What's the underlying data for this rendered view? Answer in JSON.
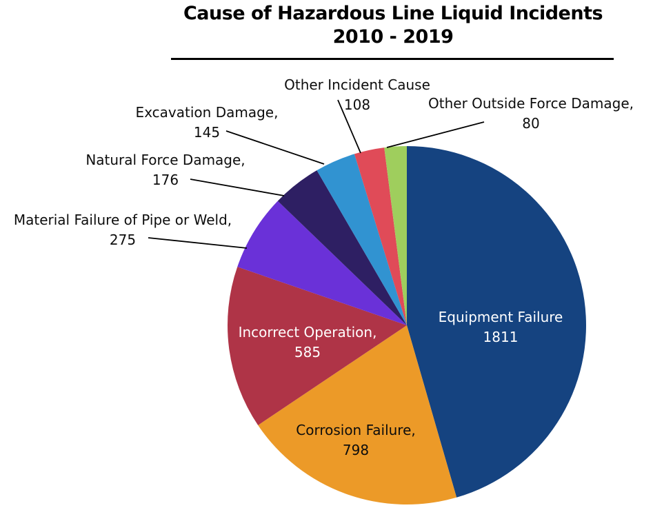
{
  "title": {
    "line1": "Cause of Hazardous Line Liquid Incidents",
    "line2": "2010 - 2019"
  },
  "chart_data": {
    "type": "pie",
    "title": "Cause of Hazardous Line Liquid Incidents",
    "subtitle": "2010 - 2019",
    "direction": "clockwise",
    "start_angle": "12 o'clock",
    "legend_position": "none",
    "segments": [
      {
        "name": "Equipment Failure",
        "value": 1811,
        "name_label": "Equipment Failure",
        "value_label": "1811",
        "color": "#154380",
        "label_position": "inside",
        "label_color": "#ffffff"
      },
      {
        "name": "Corrosion Failure",
        "value": 798,
        "name_label": "Corrosion Failure,",
        "value_label": "798",
        "color": "#EC9A28",
        "label_position": "inside",
        "label_color": "#0d0d0d"
      },
      {
        "name": "Incorrect Operation",
        "value": 585,
        "name_label": "Incorrect Operation,",
        "value_label": "585",
        "color": "#AF3447",
        "label_position": "inside",
        "label_color": "#ffffff"
      },
      {
        "name": "Material Failure of Pipe or Weld",
        "value": 275,
        "name_label": "Material Failure of Pipe or Weld,",
        "value_label": "275",
        "color": "#6A31D8",
        "label_position": "outside",
        "label_color": "#0d0d0d"
      },
      {
        "name": "Natural Force Damage",
        "value": 176,
        "name_label": "Natural Force Damage,",
        "value_label": "176",
        "color": "#2E1F63",
        "label_position": "outside",
        "label_color": "#0d0d0d"
      },
      {
        "name": "Excavation Damage",
        "value": 145,
        "name_label": "Excavation Damage,",
        "value_label": "145",
        "color": "#3193D1",
        "label_position": "outside",
        "label_color": "#0d0d0d"
      },
      {
        "name": "Other Incident Cause",
        "value": 108,
        "name_label": "Other Incident Cause",
        "value_label": "108",
        "color": "#E04B58",
        "label_position": "outside",
        "label_color": "#0d0d0d"
      },
      {
        "name": "Other Outside Force Damage",
        "value": 80,
        "name_label": "Other Outside Force Damage,",
        "value_label": "80",
        "color": "#9FCE5D",
        "label_position": "outside",
        "label_color": "#0d0d0d"
      }
    ]
  }
}
